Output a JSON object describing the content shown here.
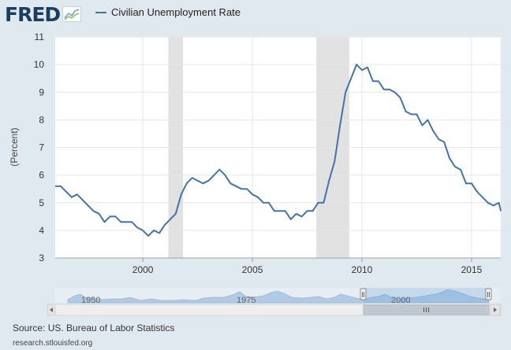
{
  "header": {
    "logo_text": "FRED",
    "legend_label": "Civilian Unemployment Rate"
  },
  "footer": {
    "source": "Source: US. Bureau of Labor Statistics",
    "credit": "research.stlouisfed.org"
  },
  "colors": {
    "series": "#4572a7",
    "recession": "#e1e1e1",
    "background": "#e1e9f0",
    "plot_background": "#ffffff",
    "logo": "#1b3e5c"
  },
  "chart_data": {
    "type": "line",
    "title": "",
    "xlabel": "",
    "ylabel": "(Percent)",
    "xlim": [
      "1996-01",
      "2016-05"
    ],
    "ylim": [
      3,
      11
    ],
    "y_ticks": [
      3,
      4,
      5,
      6,
      7,
      8,
      9,
      10,
      11
    ],
    "x_ticks": [
      "2000",
      "2005",
      "2010",
      "2015"
    ],
    "grid": true,
    "legend": "top-left",
    "recessions": [
      {
        "start": "2001-03",
        "end": "2001-11"
      },
      {
        "start": "2007-12",
        "end": "2009-06"
      }
    ],
    "series": [
      {
        "name": "Civilian Unemployment Rate",
        "x": [
          "1996-01",
          "1996-04",
          "1996-07",
          "1996-10",
          "1997-01",
          "1997-04",
          "1997-07",
          "1997-10",
          "1998-01",
          "1998-04",
          "1998-07",
          "1998-10",
          "1999-01",
          "1999-04",
          "1999-07",
          "1999-10",
          "2000-01",
          "2000-04",
          "2000-07",
          "2000-10",
          "2001-01",
          "2001-04",
          "2001-07",
          "2001-10",
          "2002-01",
          "2002-04",
          "2002-07",
          "2002-10",
          "2003-01",
          "2003-04",
          "2003-07",
          "2003-10",
          "2004-01",
          "2004-04",
          "2004-07",
          "2004-10",
          "2005-01",
          "2005-04",
          "2005-07",
          "2005-10",
          "2006-01",
          "2006-04",
          "2006-07",
          "2006-10",
          "2007-01",
          "2007-04",
          "2007-07",
          "2007-10",
          "2008-01",
          "2008-04",
          "2008-07",
          "2008-10",
          "2009-01",
          "2009-04",
          "2009-07",
          "2009-10",
          "2010-01",
          "2010-04",
          "2010-07",
          "2010-10",
          "2011-01",
          "2011-04",
          "2011-07",
          "2011-10",
          "2012-01",
          "2012-04",
          "2012-07",
          "2012-10",
          "2013-01",
          "2013-04",
          "2013-07",
          "2013-10",
          "2014-01",
          "2014-04",
          "2014-07",
          "2014-10",
          "2015-01",
          "2015-04",
          "2015-07",
          "2015-10",
          "2016-01",
          "2016-04",
          "2016-05"
        ],
        "values": [
          5.6,
          5.6,
          5.4,
          5.2,
          5.3,
          5.1,
          4.9,
          4.7,
          4.6,
          4.3,
          4.5,
          4.5,
          4.3,
          4.3,
          4.3,
          4.1,
          4.0,
          3.8,
          4.0,
          3.9,
          4.2,
          4.4,
          4.6,
          5.3,
          5.7,
          5.9,
          5.8,
          5.7,
          5.8,
          6.0,
          6.2,
          6.0,
          5.7,
          5.6,
          5.5,
          5.5,
          5.3,
          5.2,
          5.0,
          5.0,
          4.7,
          4.7,
          4.7,
          4.4,
          4.6,
          4.5,
          4.7,
          4.7,
          5.0,
          5.0,
          5.8,
          6.5,
          7.8,
          9.0,
          9.5,
          10.0,
          9.8,
          9.9,
          9.4,
          9.4,
          9.1,
          9.1,
          9.0,
          8.8,
          8.3,
          8.2,
          8.2,
          7.8,
          8.0,
          7.6,
          7.3,
          7.2,
          6.6,
          6.3,
          6.2,
          5.7,
          5.7,
          5.4,
          5.2,
          5.0,
          4.9,
          5.0,
          4.7
        ]
      }
    ]
  }
}
